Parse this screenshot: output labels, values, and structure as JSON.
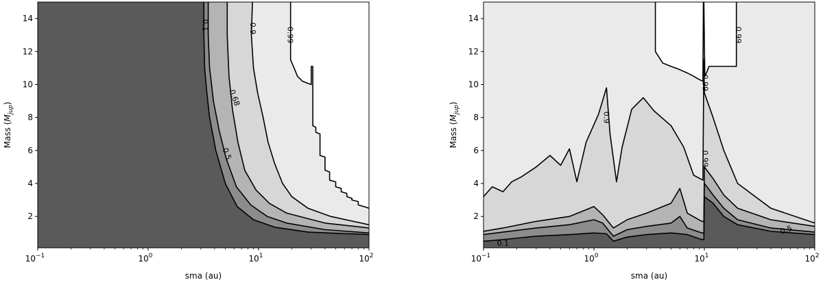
{
  "chart_data": [
    {
      "type": "contour",
      "xlabel": "sma (au)",
      "ylabel": "Mass (M_jup)",
      "ylabel_main": "Mass (",
      "ylabel_sym": "M",
      "ylabel_sub": "jup",
      "ylabel_close": ")",
      "xscale": "log",
      "xlim": [
        0.1,
        100
      ],
      "ylim": [
        0.1,
        15
      ],
      "x_ticks": [
        {
          "base": "10",
          "exp": "−1"
        },
        {
          "base": "10",
          "exp": "0"
        },
        {
          "base": "10",
          "exp": "1"
        },
        {
          "base": "10",
          "exp": "2"
        }
      ],
      "y_ticks": [
        "2",
        "4",
        "6",
        "8",
        "10",
        "12",
        "14"
      ],
      "fill_colors": [
        "#5a5a5a",
        "#8c8c8c",
        "#b4b4b4",
        "#d7d7d7",
        "#eaeaea",
        "#ffffff"
      ],
      "levels": [
        {
          "level": "0.1",
          "points": [
            [
              3.2,
              15
            ],
            [
              3.2,
              13
            ],
            [
              3.25,
              11
            ],
            [
              3.4,
              9.5
            ],
            [
              3.6,
              8
            ],
            [
              4.1,
              6
            ],
            [
              5,
              4
            ],
            [
              6.4,
              2.6
            ],
            [
              9,
              1.8
            ],
            [
              14,
              1.35
            ],
            [
              28,
              1.05
            ],
            [
              100,
              0.9
            ]
          ]
        },
        {
          "level": "0.5",
          "points": [
            [
              3.5,
              15
            ],
            [
              3.5,
              13
            ],
            [
              3.6,
              11
            ],
            [
              3.9,
              9
            ],
            [
              4.4,
              7.2
            ],
            [
              5.1,
              5.5
            ],
            [
              6.3,
              3.8
            ],
            [
              8.5,
              2.7
            ],
            [
              12,
              2
            ],
            [
              18,
              1.6
            ],
            [
              40,
              1.2
            ],
            [
              100,
              1.0
            ]
          ]
        },
        {
          "level": "0.68",
          "points": [
            [
              5.2,
              15
            ],
            [
              5.2,
              13
            ],
            [
              5.4,
              10.5
            ],
            [
              5.8,
              8.5
            ],
            [
              6.5,
              6.5
            ],
            [
              7.5,
              4.8
            ],
            [
              9.5,
              3.6
            ],
            [
              12.5,
              2.8
            ],
            [
              18,
              2.2
            ],
            [
              40,
              1.6
            ],
            [
              100,
              1.3
            ]
          ]
        },
        {
          "level": "0.9",
          "points": [
            [
              8.8,
              15
            ],
            [
              8.6,
              13
            ],
            [
              9,
              11
            ],
            [
              9.8,
              9.5
            ],
            [
              11,
              8
            ],
            [
              12.2,
              6.5
            ],
            [
              14,
              5.2
            ],
            [
              16.5,
              4
            ],
            [
              20,
              3.2
            ],
            [
              28,
              2.5
            ],
            [
              45,
              2
            ],
            [
              100,
              1.5
            ]
          ]
        },
        {
          "level": "0.99",
          "points": [
            [
              19.5,
              15
            ],
            [
              19.5,
              11.5
            ],
            [
              21,
              11
            ],
            [
              22.5,
              10.5
            ],
            [
              25,
              10.2
            ],
            [
              30,
              10
            ],
            [
              30,
              11.1
            ],
            [
              31,
              11.1
            ],
            [
              31,
              7.5
            ],
            [
              33,
              7.4
            ],
            [
              33,
              7.1
            ],
            [
              36,
              7
            ],
            [
              36,
              5.7
            ],
            [
              40,
              5.6
            ],
            [
              40,
              4.8
            ],
            [
              44,
              4.7
            ],
            [
              44,
              4.2
            ],
            [
              50,
              4.1
            ],
            [
              50,
              3.8
            ],
            [
              56,
              3.7
            ],
            [
              56,
              3.5
            ],
            [
              63,
              3.4
            ],
            [
              63,
              3.2
            ],
            [
              70,
              3.1
            ],
            [
              70,
              3.0
            ],
            [
              80,
              2.9
            ],
            [
              80,
              2.7
            ],
            [
              90,
              2.6
            ],
            [
              100,
              2.5
            ]
          ]
        }
      ],
      "level_labels": [
        {
          "text": "0.1",
          "x": 3.3,
          "y": 13.6,
          "rot": 90
        },
        {
          "text": "0.5",
          "x": 5.2,
          "y": 5.8,
          "rot": 70
        },
        {
          "text": "0.68",
          "x": 6.1,
          "y": 9.2,
          "rot": 70
        },
        {
          "text": "0.9",
          "x": 8.9,
          "y": 13.4,
          "rot": 90
        },
        {
          "text": "0.99",
          "x": 19.5,
          "y": 13.0,
          "rot": 90
        }
      ]
    },
    {
      "type": "contour",
      "xlabel": "sma (au)",
      "ylabel": "Mass (M_jup)",
      "ylabel_main": "Mass (",
      "ylabel_sym": "M",
      "ylabel_sub": "jup",
      "ylabel_close": ")",
      "xscale": "log",
      "xlim": [
        0.1,
        100
      ],
      "ylim": [
        0.1,
        15
      ],
      "x_ticks": [
        {
          "base": "10",
          "exp": "−1"
        },
        {
          "base": "10",
          "exp": "0"
        },
        {
          "base": "10",
          "exp": "1"
        },
        {
          "base": "10",
          "exp": "2"
        }
      ],
      "y_ticks": [
        "2",
        "4",
        "6",
        "8",
        "10",
        "12",
        "14"
      ],
      "fill_colors": [
        "#5a5a5a",
        "#8c8c8c",
        "#b4b4b4",
        "#d7d7d7",
        "#eaeaea",
        "#ffffff"
      ],
      "levels": [
        {
          "level": "0.1",
          "points": [
            [
              0.1,
              0.5
            ],
            [
              0.15,
              0.6
            ],
            [
              0.3,
              0.8
            ],
            [
              0.6,
              0.9
            ],
            [
              1.0,
              1.0
            ],
            [
              1.3,
              0.95
            ],
            [
              1.5,
              0.5
            ],
            [
              2.0,
              0.75
            ],
            [
              3.0,
              0.9
            ],
            [
              5.0,
              1.0
            ],
            [
              7.0,
              0.9
            ],
            [
              9.5,
              0.6
            ],
            [
              9.9,
              0.6
            ],
            [
              10,
              3.2
            ],
            [
              12,
              2.8
            ],
            [
              15,
              2.0
            ],
            [
              20,
              1.5
            ],
            [
              40,
              1.1
            ],
            [
              100,
              0.9
            ]
          ]
        },
        {
          "level": "0.5",
          "points": [
            [
              0.1,
              0.9
            ],
            [
              0.15,
              1.05
            ],
            [
              0.3,
              1.3
            ],
            [
              0.6,
              1.5
            ],
            [
              1.0,
              1.8
            ],
            [
              1.2,
              1.6
            ],
            [
              1.5,
              0.8
            ],
            [
              2.0,
              1.2
            ],
            [
              3.0,
              1.4
            ],
            [
              5.0,
              1.6
            ],
            [
              6.0,
              2.0
            ],
            [
              7.0,
              1.3
            ],
            [
              9.5,
              1.0
            ],
            [
              9.9,
              1.0
            ],
            [
              10,
              4.0
            ],
            [
              12,
              3.3
            ],
            [
              15,
              2.5
            ],
            [
              20,
              1.8
            ],
            [
              40,
              1.3
            ],
            [
              100,
              1.05
            ]
          ]
        },
        {
          "level": "0.68",
          "points": [
            [
              0.1,
              1.1
            ],
            [
              0.15,
              1.3
            ],
            [
              0.3,
              1.7
            ],
            [
              0.6,
              2.0
            ],
            [
              1.0,
              2.6
            ],
            [
              1.2,
              2.1
            ],
            [
              1.5,
              1.3
            ],
            [
              2.0,
              1.8
            ],
            [
              3.0,
              2.2
            ],
            [
              5.0,
              2.8
            ],
            [
              6.0,
              3.7
            ],
            [
              7.0,
              2.2
            ],
            [
              9.5,
              1.7
            ],
            [
              9.9,
              1.7
            ],
            [
              10,
              5.0
            ],
            [
              12,
              4.3
            ],
            [
              15,
              3.3
            ],
            [
              20,
              2.5
            ],
            [
              40,
              1.8
            ],
            [
              100,
              1.4
            ]
          ]
        },
        {
          "level": "0.9",
          "points": [
            [
              0.1,
              3.2
            ],
            [
              0.12,
              3.8
            ],
            [
              0.15,
              3.5
            ],
            [
              0.18,
              4.1
            ],
            [
              0.22,
              4.4
            ],
            [
              0.3,
              5.0
            ],
            [
              0.4,
              5.7
            ],
            [
              0.5,
              5.1
            ],
            [
              0.6,
              6.1
            ],
            [
              0.7,
              4.1
            ],
            [
              0.85,
              6.5
            ],
            [
              1.1,
              8.2
            ],
            [
              1.3,
              9.8
            ],
            [
              1.4,
              7.0
            ],
            [
              1.6,
              4.1
            ],
            [
              1.8,
              6.2
            ],
            [
              2.2,
              8.5
            ],
            [
              2.8,
              9.2
            ],
            [
              3.5,
              8.4
            ],
            [
              5.0,
              7.5
            ],
            [
              6.5,
              6.2
            ],
            [
              8.0,
              4.5
            ],
            [
              9.7,
              4.2
            ],
            [
              9.9,
              11.5
            ],
            [
              10,
              9.5
            ],
            [
              12,
              8.0
            ],
            [
              15,
              6.0
            ],
            [
              20,
              4.0
            ],
            [
              40,
              2.5
            ],
            [
              100,
              1.6
            ]
          ]
        },
        {
          "level": "0.99",
          "points": [
            [
              3.6,
              15
            ],
            [
              3.6,
              12
            ],
            [
              4.2,
              11.3
            ],
            [
              5,
              11.1
            ],
            [
              6,
              10.9
            ],
            [
              7,
              10.7
            ],
            [
              8,
              10.5
            ],
            [
              9,
              10.3
            ],
            [
              9.7,
              10.2
            ],
            [
              9.8,
              15
            ],
            [
              9.9,
              15
            ],
            [
              10.1,
              10.5
            ],
            [
              10.6,
              10.8
            ],
            [
              11,
              11.1
            ],
            [
              19.5,
              11.1
            ],
            [
              19.5,
              15
            ]
          ]
        }
      ],
      "level_labels": [
        {
          "text": "0.99",
          "x": 20.5,
          "y": 13.0,
          "rot": 90
        },
        {
          "text": "0.99",
          "x": 10.2,
          "y": 10.1,
          "rot": 90
        },
        {
          "text": "0.99",
          "x": 10.2,
          "y": 5.5,
          "rot": 90
        },
        {
          "text": "0.9",
          "x": 1.3,
          "y": 8.0,
          "rot": 90
        },
        {
          "text": "0.5",
          "x": 55,
          "y": 1.2,
          "rot": -20
        },
        {
          "text": "0.1",
          "x": 0.15,
          "y": 0.4,
          "rot": 0
        }
      ]
    }
  ]
}
